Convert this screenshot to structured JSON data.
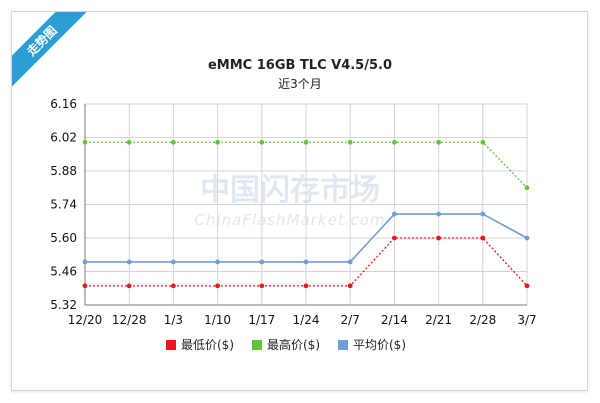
{
  "badge": {
    "label": "走势图"
  },
  "watermark": {
    "cn": "中国闪存市场",
    "en": "ChinaFlashMarket.com"
  },
  "chart_data": {
    "type": "line",
    "title": "eMMC 16GB TLC V4.5/5.0",
    "subtitle": "近3个月",
    "categories": [
      "12/20",
      "12/28",
      "1/3",
      "1/10",
      "1/17",
      "1/24",
      "2/7",
      "2/14",
      "2/21",
      "2/28",
      "3/7"
    ],
    "y_ticks": [
      "6.16",
      "6.02",
      "5.88",
      "5.74",
      "5.60",
      "5.46",
      "5.32"
    ],
    "ylim": [
      5.32,
      6.16
    ],
    "grid": true,
    "legend_position": "bottom",
    "series": [
      {
        "name": "最低价($)",
        "color": "#e8161d",
        "style": "dotted",
        "values": [
          5.4,
          5.4,
          5.4,
          5.4,
          5.4,
          5.4,
          5.4,
          5.6,
          5.6,
          5.6,
          5.4
        ]
      },
      {
        "name": "最高价($)",
        "color": "#5ec638",
        "style": "dotted",
        "values": [
          6.0,
          6.0,
          6.0,
          6.0,
          6.0,
          6.0,
          6.0,
          6.0,
          6.0,
          6.0,
          5.81
        ]
      },
      {
        "name": "平均价($)",
        "color": "#6d9ed4",
        "style": "solid",
        "values": [
          5.5,
          5.5,
          5.5,
          5.5,
          5.5,
          5.5,
          5.5,
          5.7,
          5.7,
          5.7,
          5.6
        ]
      }
    ]
  }
}
